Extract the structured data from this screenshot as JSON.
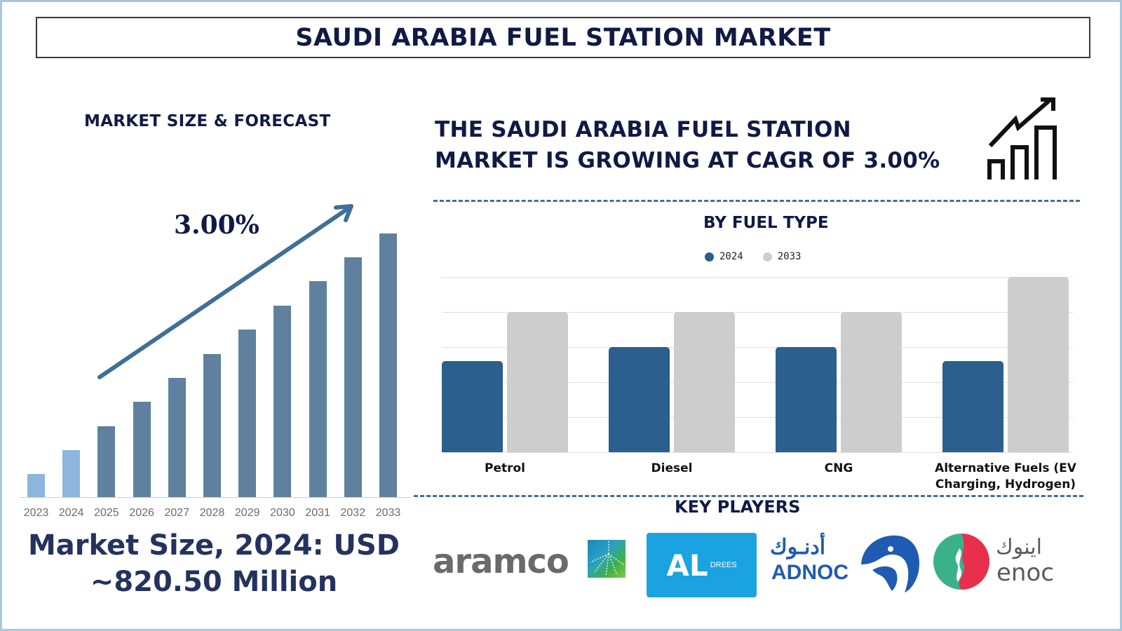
{
  "title": "SAUDI ARABIA FUEL STATION MARKET",
  "left_panel": {
    "heading": "MARKET SIZE & FORECAST",
    "cagr_label": "3.00%",
    "market_size_line1": "Market Size, 2024: USD",
    "market_size_line2": "~820.50 Million"
  },
  "right_panel": {
    "growth_line1": "THE SAUDI ARABIA FUEL STATION",
    "growth_line2": "MARKET IS GROWING AT CAGR OF 3.00%",
    "fuel_heading": "BY FUEL TYPE",
    "legend": [
      {
        "label": "2024",
        "color": "#2a5f8e"
      },
      {
        "label": "2033",
        "color": "#cdcdcd"
      }
    ],
    "key_players_heading": "KEY PLAYERS",
    "key_players": [
      {
        "name": "aramco",
        "text": "aramco"
      },
      {
        "name": "al-drees",
        "text": "AL",
        "sub": "DREES"
      },
      {
        "name": "adnoc",
        "text": "ADNOC",
        "arabic": "أدنـوك"
      },
      {
        "name": "enoc",
        "text": "enoc",
        "arabic": "اينوك"
      }
    ]
  },
  "colors": {
    "title_navy": "#111a44",
    "bar_historic": "#8db5de",
    "bar_forecast": "#5f819f",
    "arrow": "#3f6f96",
    "series_2024": "#2a5f8e",
    "series_2033": "#cdcdcd",
    "frame": "#a9c7dc"
  },
  "chart_data": [
    {
      "type": "bar",
      "title": "MARKET SIZE & FORECAST",
      "categories": [
        "2023",
        "2024",
        "2025",
        "2026",
        "2027",
        "2028",
        "2029",
        "2030",
        "2031",
        "2032",
        "2033"
      ],
      "values": [
        33,
        67,
        101,
        136,
        170,
        204,
        239,
        273,
        308,
        342,
        376
      ],
      "value_units": "relative bar height (px, unlabeled axis)",
      "annotation": "3.00% CAGR arrow",
      "xlabel": "",
      "ylabel": "",
      "grid": false
    },
    {
      "type": "bar",
      "title": "BY FUEL TYPE",
      "categories": [
        "Petrol",
        "Diesel",
        "CNG",
        "Alternative Fuels (EV Charging, Hydrogen)"
      ],
      "series": [
        {
          "name": "2024",
          "values": [
            2.6,
            3.0,
            3.0,
            2.6
          ]
        },
        {
          "name": "2033",
          "values": [
            4.0,
            4.0,
            4.0,
            5.0
          ]
        }
      ],
      "ylim": [
        0,
        5
      ],
      "grid": true,
      "legend_position": "top",
      "xlabel": "",
      "ylabel": ""
    }
  ]
}
